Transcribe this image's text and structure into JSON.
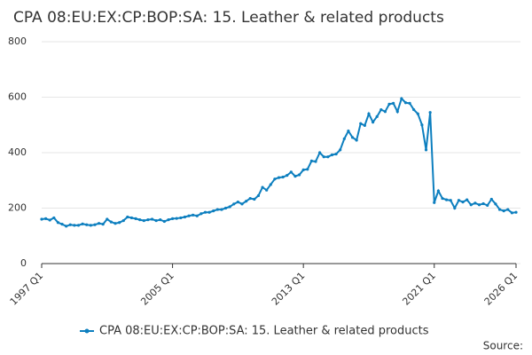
{
  "chart_data": {
    "type": "line",
    "title": "CPA 08:EU:EX:CP:BOP:SA: 15. Leather & related products",
    "source": "Source:",
    "categories": [
      "1997 Q1",
      null,
      null,
      null,
      null,
      null,
      null,
      null,
      null,
      null,
      null,
      null,
      null,
      null,
      null,
      null,
      null,
      null,
      null,
      null,
      null,
      null,
      null,
      null,
      null,
      null,
      null,
      null,
      null,
      null,
      null,
      null,
      "2005 Q1",
      null,
      null,
      null,
      null,
      null,
      null,
      null,
      null,
      null,
      null,
      null,
      null,
      null,
      null,
      null,
      null,
      null,
      null,
      null,
      null,
      null,
      null,
      null,
      null,
      null,
      null,
      null,
      null,
      null,
      null,
      null,
      "2013 Q1",
      null,
      null,
      null,
      null,
      null,
      null,
      null,
      null,
      null,
      null,
      null,
      null,
      null,
      null,
      null,
      null,
      null,
      null,
      null,
      null,
      null,
      null,
      null,
      null,
      null,
      null,
      null,
      null,
      null,
      null,
      null,
      "2021 Q1",
      null,
      null,
      null,
      null,
      null,
      null,
      null,
      null,
      null,
      null,
      null,
      null,
      null,
      null,
      null,
      null,
      null,
      null,
      null,
      "2026 Q1"
    ],
    "series": [
      {
        "name": "CPA 08:EU:EX:CP:BOP:SA: 15. Leather & related products",
        "color": "#0d7fbf",
        "values": [
          160,
          162,
          157,
          165,
          148,
          142,
          135,
          140,
          138,
          138,
          143,
          140,
          138,
          140,
          145,
          142,
          160,
          150,
          145,
          148,
          155,
          168,
          165,
          162,
          158,
          155,
          158,
          160,
          155,
          158,
          152,
          158,
          162,
          163,
          165,
          168,
          172,
          175,
          172,
          180,
          185,
          185,
          190,
          195,
          195,
          200,
          205,
          215,
          222,
          215,
          225,
          235,
          232,
          245,
          275,
          265,
          285,
          305,
          310,
          312,
          318,
          330,
          315,
          320,
          338,
          340,
          370,
          368,
          400,
          385,
          385,
          392,
          395,
          410,
          450,
          478,
          455,
          445,
          505,
          498,
          540,
          510,
          530,
          555,
          548,
          575,
          578,
          548,
          595,
          580,
          578,
          555,
          540,
          500,
          410,
          545,
          220,
          262,
          235,
          230,
          228,
          200,
          228,
          222,
          230,
          212,
          218,
          212,
          216,
          210,
          232,
          215,
          195,
          190,
          195,
          183,
          185
        ]
      }
    ],
    "ylim": [
      0,
      800
    ],
    "yticks": [
      0,
      200,
      400,
      600,
      800
    ],
    "grid": true
  }
}
